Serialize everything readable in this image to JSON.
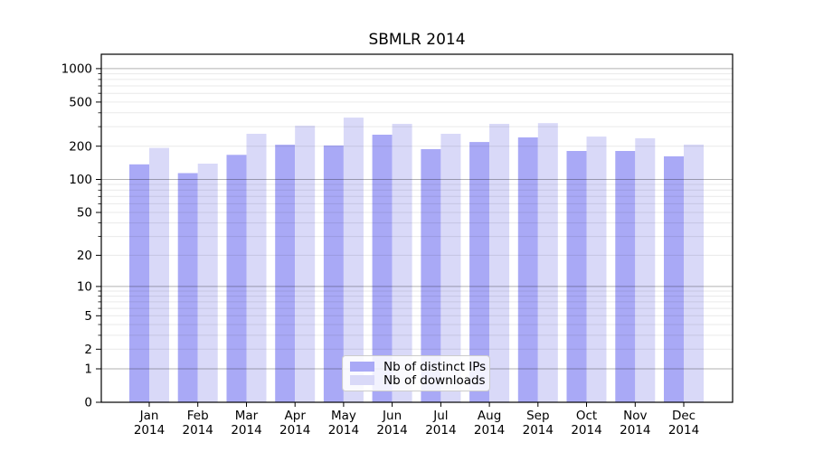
{
  "chart_data": {
    "type": "bar",
    "title": "SBMLR 2014",
    "categories": [
      "Jan",
      "Feb",
      "Mar",
      "Apr",
      "May",
      "Jun",
      "Jul",
      "Aug",
      "Sep",
      "Oct",
      "Nov",
      "Dec"
    ],
    "category_year": "2014",
    "series": [
      {
        "name": "Nb of distinct IPs",
        "color": "#a9a9f6",
        "values": [
          137,
          114,
          167,
          206,
          203,
          254,
          188,
          218,
          240,
          181,
          181,
          162
        ]
      },
      {
        "name": "Nb of downloads",
        "color": "#d9d9f8",
        "values": [
          193,
          139,
          259,
          306,
          362,
          318,
          259,
          318,
          323,
          244,
          236,
          207
        ]
      }
    ],
    "xlabel": "",
    "ylabel": "",
    "y_scale": "log10(v+1)",
    "y_ticks": [
      0,
      1,
      2,
      5,
      10,
      20,
      50,
      100,
      200,
      500,
      1000
    ],
    "ylim": [
      0,
      1350
    ],
    "grid": "on",
    "legend_position": "bottom-center",
    "colors": {
      "background": "#ffffff",
      "axis": "#000000",
      "grid_major": "#b3b3b3",
      "grid_minor": "#e8e8e8",
      "tick_label": "#000000"
    }
  }
}
